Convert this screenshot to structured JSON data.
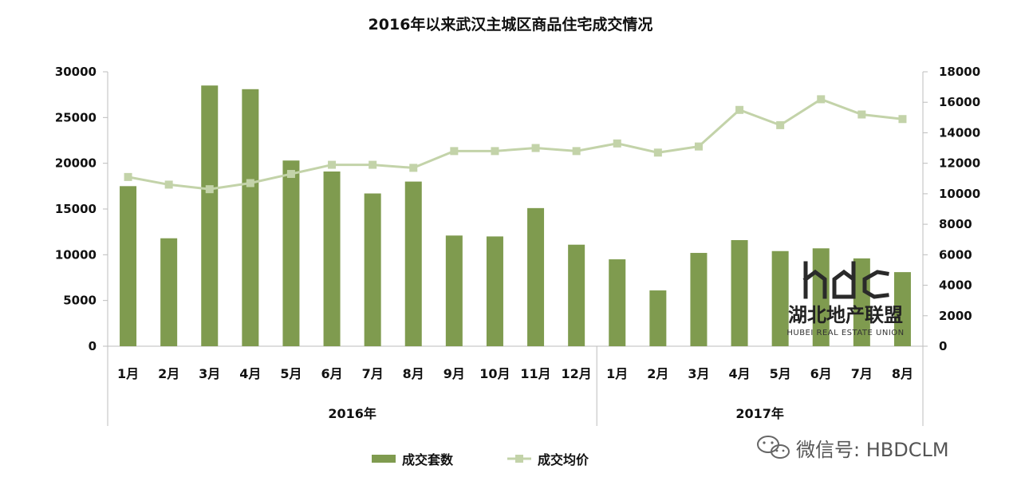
{
  "chart_data": {
    "type": "bar",
    "title": "2016年以来武汉主城区商品住宅成交情况",
    "categories": [
      "1月",
      "2月",
      "3月",
      "4月",
      "5月",
      "6月",
      "7月",
      "8月",
      "9月",
      "10月",
      "11月",
      "12月",
      "1月",
      "2月",
      "3月",
      "4月",
      "5月",
      "6月",
      "7月",
      "8月"
    ],
    "groups": [
      {
        "label": "2016年",
        "count": 12
      },
      {
        "label": "2017年",
        "count": 8
      }
    ],
    "series": [
      {
        "name": "成交套数",
        "type": "bar",
        "axis": "left",
        "color": "#7f9b4f",
        "values": [
          17500,
          11800,
          28500,
          28100,
          20300,
          19100,
          16700,
          18000,
          12100,
          12000,
          15100,
          11100,
          9500,
          6100,
          10200,
          11600,
          10400,
          10700,
          9600,
          8100
        ]
      },
      {
        "name": "成交均价",
        "type": "line",
        "axis": "right",
        "color": "#c3d3a9",
        "values": [
          11100,
          10600,
          10300,
          10700,
          11300,
          11900,
          11900,
          11700,
          12800,
          12800,
          13000,
          12800,
          13300,
          12700,
          13100,
          15500,
          14500,
          16200,
          15200,
          14900
        ]
      }
    ],
    "y_left": {
      "min": 0,
      "max": 30000,
      "ticks": [
        "0",
        "5000",
        "10000",
        "15000",
        "20000",
        "25000",
        "30000"
      ]
    },
    "y_right": {
      "min": 0,
      "max": 18000,
      "ticks": [
        "0",
        "2000",
        "4000",
        "6000",
        "8000",
        "10000",
        "12000",
        "14000",
        "16000",
        "18000"
      ]
    },
    "grid": false,
    "legend_position": "bottom-center"
  },
  "watermark": {
    "logo_text": "hbdc",
    "cn": "湖北地产联盟",
    "en": "HUBEI REAL ESTATE UNION"
  },
  "wechat": {
    "icon": "wechat-icon",
    "text": "微信号: HBDCLM"
  }
}
